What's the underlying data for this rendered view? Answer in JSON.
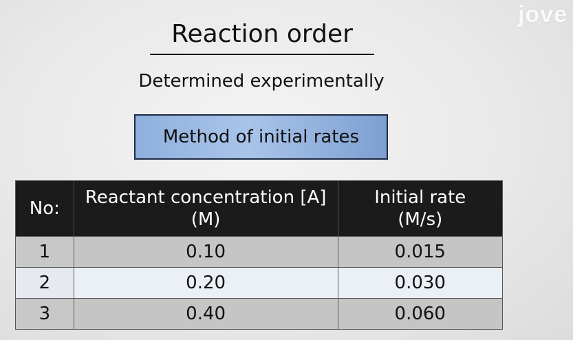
{
  "brand": {
    "logo_text": "jove"
  },
  "slide": {
    "title": "Reaction order",
    "subtitle": "Determined experimentally",
    "method": "Method of initial rates"
  },
  "table": {
    "headers": {
      "no": "No:",
      "concentration_line1": "Reactant concentration [A]",
      "concentration_line2": "(M)",
      "rate_line1": "Initial rate",
      "rate_line2": "(M/s)"
    },
    "rows": [
      {
        "no": "1",
        "concentration": "0.10",
        "rate": "0.015"
      },
      {
        "no": "2",
        "concentration": "0.20",
        "rate": "0.030"
      },
      {
        "no": "3",
        "concentration": "0.40",
        "rate": "0.060"
      }
    ]
  },
  "colors": {
    "header_bg": "#1b1b1b",
    "method_box": "#9ab8e3",
    "row_gray": "#c5c5c5",
    "row_light": "#ebeff6"
  }
}
